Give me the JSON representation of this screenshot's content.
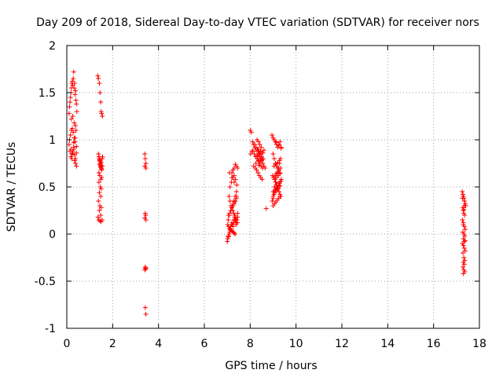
{
  "chart_data": {
    "type": "scatter",
    "title": "Day 209 of 2018, Sidereal Day-to-day VTEC variation (SDTVAR) for receiver nors",
    "xlabel": "GPS time / hours",
    "ylabel": "SDTVAR / TECUs",
    "xlim": [
      0,
      18
    ],
    "ylim": [
      -1,
      2
    ],
    "xticks": [
      0,
      2,
      4,
      6,
      8,
      10,
      12,
      14,
      16,
      18
    ],
    "yticks": [
      -1,
      -0.5,
      0,
      0.5,
      1,
      1.5,
      2
    ],
    "xtick_labels": [
      "0",
      "2",
      "4",
      "6",
      "8",
      "10",
      "12",
      "14",
      "16",
      "18"
    ],
    "ytick_labels": [
      "-1",
      "-0.5",
      "0",
      "0.5",
      "1",
      "1.5",
      "2"
    ],
    "grid": true,
    "marker": "+",
    "color": "#ff0000",
    "series": [
      {
        "name": "SDTVAR",
        "x": [
          0.1,
          0.12,
          0.14,
          0.16,
          0.18,
          0.2,
          0.22,
          0.24,
          0.26,
          0.28,
          0.3,
          0.32,
          0.34,
          0.36,
          0.38,
          0.4,
          0.42,
          0.44,
          0.12,
          0.16,
          0.2,
          0.24,
          0.28,
          0.32,
          0.36,
          0.4,
          0.18,
          0.22,
          0.26,
          0.3,
          0.34,
          0.38,
          0.42,
          0.1,
          0.14,
          0.18,
          0.22,
          0.26,
          0.3,
          0.34,
          0.38,
          0.42,
          0.2,
          0.26,
          0.32,
          0.38,
          0.3,
          0.36,
          0.42,
          1.35,
          1.38,
          1.42,
          1.45,
          1.48,
          1.5,
          1.52,
          1.55,
          1.38,
          1.4,
          1.42,
          1.44,
          1.46,
          1.48,
          1.5,
          1.52,
          1.54,
          1.56,
          1.4,
          1.44,
          1.48,
          1.52,
          1.55,
          1.4,
          1.46,
          1.5,
          1.42,
          1.48,
          1.38,
          1.44,
          1.5,
          1.42,
          1.48,
          1.54,
          1.36,
          1.4,
          1.45,
          1.5,
          1.43,
          1.47,
          1.52,
          1.45,
          1.5,
          1.44,
          1.49,
          3.4,
          3.42,
          3.45,
          3.4,
          3.45,
          3.42,
          3.44,
          3.4,
          3.45,
          3.42,
          3.44,
          3.4,
          3.45,
          3.42,
          3.45,
          7.0,
          7.02,
          7.05,
          7.08,
          7.1,
          7.12,
          7.15,
          7.18,
          7.2,
          7.22,
          7.25,
          7.28,
          7.3,
          7.32,
          7.35,
          7.38,
          7.4,
          7.42,
          7.45,
          7.05,
          7.1,
          7.15,
          7.2,
          7.25,
          7.3,
          7.35,
          7.4,
          7.08,
          7.12,
          7.16,
          7.2,
          7.24,
          7.28,
          7.32,
          7.36,
          7.4,
          7.44,
          7.02,
          7.06,
          7.1,
          7.14,
          7.18,
          7.22,
          7.26,
          7.3,
          7.34,
          7.04,
          7.1,
          7.16,
          7.22,
          7.28,
          7.34,
          7.4,
          7.12,
          7.18,
          7.24,
          7.3,
          7.36,
          7.42,
          7.2,
          7.3,
          7.4,
          7.25,
          7.35,
          7.45,
          7.1,
          7.2,
          7.3,
          7.05,
          7.15,
          7.25,
          7.35,
          7.45,
          7.2,
          7.3,
          7.4,
          8.0,
          8.05,
          8.1,
          8.15,
          8.2,
          8.25,
          8.3,
          8.35,
          8.4,
          8.45,
          8.5,
          8.55,
          8.6,
          8.65,
          8.12,
          8.18,
          8.24,
          8.3,
          8.36,
          8.42,
          8.48,
          8.54,
          8.2,
          8.26,
          8.32,
          8.38,
          8.44,
          8.5,
          8.56,
          8.15,
          8.22,
          8.28,
          8.34,
          8.4,
          8.46,
          8.52,
          8.3,
          8.36,
          8.42,
          8.48,
          8.35,
          8.45,
          8.55,
          8.4,
          8.5,
          8.32,
          8.44,
          8.02,
          8.08,
          8.7,
          8.25,
          8.38,
          8.52,
          8.3,
          8.45,
          8.6,
          8.38,
          8.95,
          9.0,
          9.05,
          9.1,
          9.15,
          9.2,
          9.25,
          9.3,
          9.35,
          9.0,
          9.05,
          9.1,
          9.15,
          9.2,
          9.25,
          9.3,
          8.98,
          9.02,
          9.06,
          9.1,
          9.14,
          9.18,
          9.22,
          9.26,
          9.3,
          9.34,
          9.0,
          9.04,
          9.08,
          9.12,
          9.16,
          9.2,
          9.24,
          9.28,
          9.32,
          8.96,
          9.0,
          9.04,
          9.08,
          9.12,
          9.16,
          9.2,
          9.24,
          9.28,
          9.32,
          9.36,
          9.02,
          9.08,
          9.14,
          9.2,
          9.26,
          9.32,
          9.0,
          9.06,
          9.12,
          9.18,
          9.24,
          9.3,
          9.04,
          9.12,
          9.2,
          9.28,
          9.1,
          9.22,
          9.3,
          9.06,
          9.16,
          9.26,
          9.34,
          9.0,
          9.1,
          9.2,
          9.3,
          9.05,
          9.15,
          9.25,
          9.35,
          17.25,
          17.28,
          17.3,
          17.32,
          17.35,
          17.38,
          17.4,
          17.28,
          17.3,
          17.32,
          17.35,
          17.26,
          17.3,
          17.34,
          17.38,
          17.28,
          17.32,
          17.36,
          17.3,
          17.34,
          17.26,
          17.3,
          17.34,
          17.38,
          17.28,
          17.32,
          17.36,
          17.3,
          17.34,
          17.28,
          17.32,
          17.36,
          17.3,
          17.26,
          17.34,
          17.3,
          17.38,
          17.32
        ],
        "y": [
          1.28,
          1.35,
          1.4,
          1.45,
          1.5,
          1.55,
          1.6,
          1.62,
          1.58,
          1.65,
          1.72,
          1.55,
          1.6,
          1.48,
          1.52,
          1.42,
          1.38,
          1.3,
          1.0,
          1.05,
          1.1,
          1.12,
          1.08,
          1.02,
          0.98,
          1.1,
          0.9,
          0.85,
          0.88,
          0.92,
          0.84,
          0.8,
          0.86,
          0.95,
          0.88,
          0.82,
          0.8,
          0.86,
          0.9,
          0.78,
          0.75,
          0.72,
          1.22,
          1.25,
          1.18,
          1.15,
          0.97,
          1.02,
          0.93,
          1.68,
          1.65,
          1.6,
          1.5,
          1.4,
          1.3,
          1.28,
          1.25,
          0.85,
          0.82,
          0.8,
          0.78,
          0.75,
          0.72,
          0.7,
          0.68,
          0.8,
          0.82,
          0.65,
          0.62,
          0.58,
          0.6,
          0.72,
          0.55,
          0.5,
          0.48,
          0.44,
          0.4,
          0.35,
          0.3,
          0.28,
          0.25,
          0.2,
          0.15,
          0.18,
          0.15,
          0.14,
          0.13,
          0.74,
          0.71,
          0.69,
          0.77,
          0.76,
          0.79,
          0.73,
          0.85,
          0.8,
          0.75,
          0.72,
          0.7,
          0.22,
          0.2,
          0.17,
          0.15,
          -0.35,
          -0.36,
          -0.38,
          -0.37,
          -0.78,
          -0.85,
          -0.08,
          -0.05,
          -0.02,
          0.0,
          0.02,
          0.05,
          0.08,
          0.1,
          0.12,
          0.1,
          0.08,
          0.12,
          0.15,
          0.18,
          0.14,
          0.1,
          0.12,
          0.15,
          0.18,
          0.2,
          0.22,
          0.25,
          0.28,
          0.3,
          0.32,
          0.35,
          0.38,
          0.4,
          0.35,
          0.3,
          0.28,
          0.25,
          0.22,
          0.2,
          0.18,
          0.15,
          0.12,
          0.1,
          0.08,
          0.06,
          0.05,
          0.04,
          0.03,
          0.02,
          0.01,
          0.0,
          0.15,
          0.2,
          0.25,
          0.3,
          0.35,
          0.4,
          0.45,
          0.5,
          0.55,
          0.6,
          0.62,
          0.58,
          0.52,
          0.65,
          0.7,
          0.72,
          0.68,
          0.74,
          0.7,
          0.65,
          0.6,
          0.55,
          -0.03,
          0.04,
          0.1,
          0.16,
          0.22,
          0.28,
          0.34,
          0.4,
          1.1,
          1.08,
          0.98,
          0.95,
          0.92,
          0.9,
          0.88,
          0.85,
          0.82,
          0.8,
          0.78,
          0.75,
          0.72,
          0.7,
          0.88,
          0.85,
          0.82,
          0.8,
          0.78,
          0.75,
          0.72,
          0.7,
          0.95,
          0.92,
          0.9,
          0.88,
          0.85,
          0.82,
          0.8,
          0.72,
          0.7,
          0.68,
          0.65,
          0.62,
          0.6,
          0.58,
          1.0,
          0.98,
          0.95,
          0.92,
          0.9,
          0.88,
          0.86,
          0.84,
          0.82,
          0.8,
          0.78,
          0.85,
          0.88,
          0.27,
          0.75,
          0.77,
          0.79,
          0.83,
          0.87,
          0.89,
          0.73,
          1.05,
          1.02,
          1.0,
          0.98,
          0.95,
          0.92,
          0.95,
          0.98,
          0.92,
          0.85,
          0.8,
          0.75,
          0.72,
          0.7,
          0.68,
          0.65,
          0.62,
          0.6,
          0.58,
          0.55,
          0.52,
          0.5,
          0.48,
          0.45,
          0.42,
          0.4,
          0.38,
          0.45,
          0.5,
          0.55,
          0.6,
          0.65,
          0.7,
          0.75,
          0.8,
          0.35,
          0.4,
          0.42,
          0.44,
          0.46,
          0.48,
          0.5,
          0.52,
          0.54,
          0.56,
          0.58,
          0.6,
          0.62,
          0.64,
          0.66,
          0.68,
          0.7,
          0.3,
          0.32,
          0.34,
          0.36,
          0.38,
          0.4,
          0.72,
          0.74,
          0.76,
          0.78,
          0.6,
          0.62,
          0.64,
          0.5,
          0.52,
          0.54,
          0.56,
          0.45,
          0.47,
          0.49,
          0.51,
          1.0,
          0.97,
          0.94,
          0.91,
          0.45,
          0.42,
          0.4,
          0.38,
          0.35,
          0.32,
          0.3,
          0.28,
          0.25,
          0.22,
          0.2,
          0.15,
          0.1,
          0.08,
          0.05,
          0.02,
          0.0,
          -0.02,
          -0.05,
          -0.08,
          -0.1,
          -0.12,
          -0.15,
          -0.18,
          -0.2,
          -0.25,
          -0.28,
          -0.3,
          -0.32,
          -0.35,
          -0.38,
          -0.4,
          -0.42,
          0.38,
          0.3,
          0.12,
          -0.07,
          0.26
        ]
      }
    ]
  }
}
